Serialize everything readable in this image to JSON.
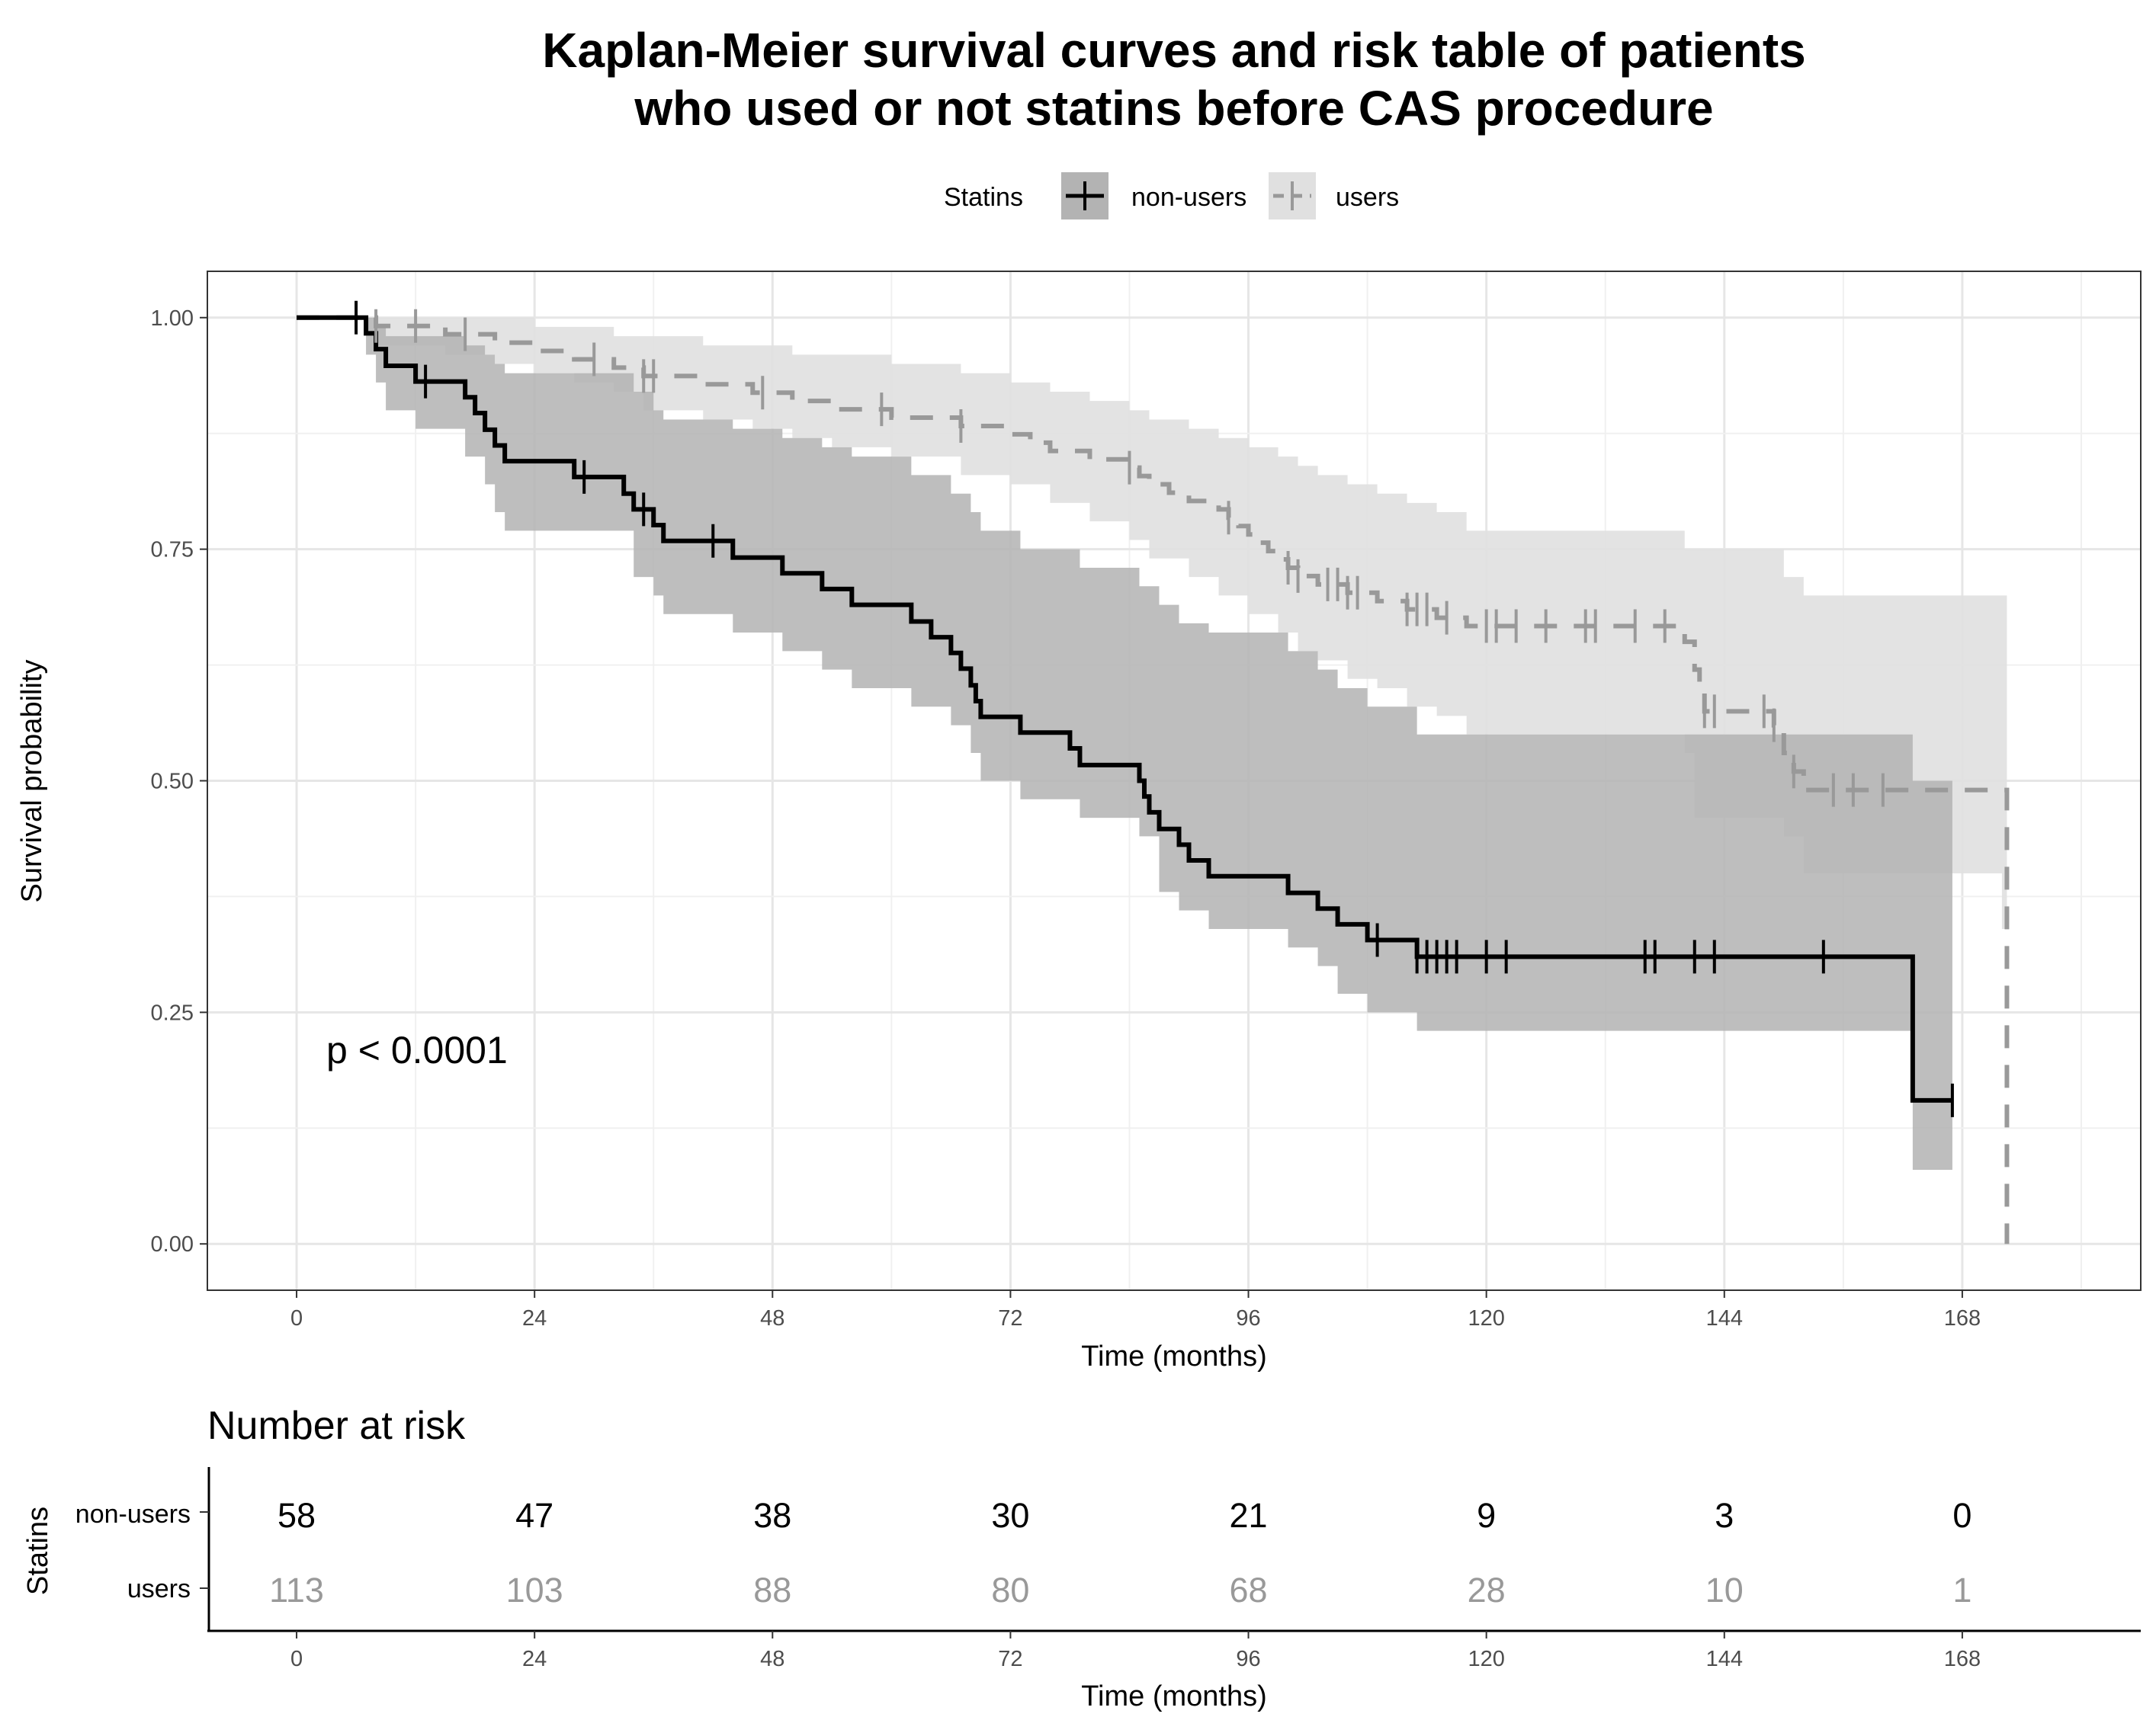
{
  "chart_data": {
    "type": "line",
    "subtype": "kaplan-meier",
    "title_lines": [
      "Kaplan-Meier survival curves and risk table of patients",
      "who used or not statins before CAS procedure"
    ],
    "legend": {
      "title": "Statins",
      "position": "top",
      "entries": [
        "non-users",
        "users"
      ]
    },
    "xlabel": "Time (months)",
    "ylabel": "Survival probability",
    "xlim": [
      -9,
      186
    ],
    "ylim": [
      -0.05,
      1.05
    ],
    "x_ticks": [
      0,
      24,
      48,
      72,
      96,
      120,
      144,
      168
    ],
    "x_tick_labels": [
      "0",
      "24",
      "48",
      "72",
      "96",
      "120",
      "144",
      "168"
    ],
    "y_ticks": [
      0,
      0.25,
      0.5,
      0.75,
      1
    ],
    "y_tick_labels": [
      "0.00",
      "0.25",
      "0.50",
      "0.75",
      "1.00"
    ],
    "grid": true,
    "annotation": "p < 0.0001",
    "annotation_at": [
      3,
      0.195
    ],
    "series": [
      {
        "name": "non-users",
        "color": "#000000",
        "band_color": "#b3b3b3",
        "dash": false,
        "steps": [
          [
            0,
            1.0
          ],
          [
            7,
            0.983
          ],
          [
            8,
            0.966
          ],
          [
            9,
            0.948
          ],
          [
            12,
            0.931
          ],
          [
            15,
            0.931
          ],
          [
            17,
            0.914
          ],
          [
            18,
            0.897
          ],
          [
            19,
            0.879
          ],
          [
            20,
            0.862
          ],
          [
            21,
            0.845
          ],
          [
            24,
            0.845
          ],
          [
            28,
            0.828
          ],
          [
            33,
            0.81
          ],
          [
            34,
            0.793
          ],
          [
            36,
            0.776
          ],
          [
            37,
            0.759
          ],
          [
            40,
            0.759
          ],
          [
            44,
            0.741
          ],
          [
            49,
            0.724
          ],
          [
            53,
            0.707
          ],
          [
            56,
            0.69
          ],
          [
            62,
            0.672
          ],
          [
            64,
            0.655
          ],
          [
            66,
            0.638
          ],
          [
            67,
            0.621
          ],
          [
            68,
            0.603
          ],
          [
            68.5,
            0.586
          ],
          [
            69,
            0.569
          ],
          [
            73,
            0.552
          ],
          [
            78,
            0.535
          ],
          [
            79,
            0.517
          ],
          [
            85,
            0.5
          ],
          [
            85.5,
            0.483
          ],
          [
            86,
            0.466
          ],
          [
            87,
            0.448
          ],
          [
            89,
            0.431
          ],
          [
            90,
            0.414
          ],
          [
            92,
            0.397
          ],
          [
            100,
            0.379
          ],
          [
            103,
            0.362
          ],
          [
            105,
            0.345
          ],
          [
            108,
            0.328
          ],
          [
            113,
            0.31
          ],
          [
            163,
            0.155
          ],
          [
            167,
            0.155
          ]
        ],
        "ci_steps": [
          [
            0,
            1.0,
            1.0
          ],
          [
            7,
            1.0,
            0.96
          ],
          [
            8,
            0.99,
            0.93
          ],
          [
            9,
            0.98,
            0.9
          ],
          [
            12,
            0.98,
            0.88
          ],
          [
            17,
            0.97,
            0.85
          ],
          [
            19,
            0.96,
            0.82
          ],
          [
            20,
            0.95,
            0.79
          ],
          [
            21,
            0.94,
            0.77
          ],
          [
            24,
            0.94,
            0.77
          ],
          [
            34,
            0.92,
            0.72
          ],
          [
            36,
            0.9,
            0.7
          ],
          [
            37,
            0.89,
            0.68
          ],
          [
            44,
            0.88,
            0.66
          ],
          [
            49,
            0.87,
            0.64
          ],
          [
            53,
            0.86,
            0.62
          ],
          [
            56,
            0.85,
            0.6
          ],
          [
            62,
            0.83,
            0.58
          ],
          [
            66,
            0.81,
            0.56
          ],
          [
            68,
            0.79,
            0.53
          ],
          [
            69,
            0.77,
            0.5
          ],
          [
            73,
            0.75,
            0.48
          ],
          [
            79,
            0.73,
            0.46
          ],
          [
            85,
            0.71,
            0.44
          ],
          [
            87,
            0.69,
            0.38
          ],
          [
            89,
            0.67,
            0.36
          ],
          [
            92,
            0.66,
            0.34
          ],
          [
            100,
            0.64,
            0.32
          ],
          [
            103,
            0.62,
            0.3
          ],
          [
            105,
            0.6,
            0.27
          ],
          [
            108,
            0.58,
            0.25
          ],
          [
            113,
            0.55,
            0.23
          ],
          [
            163,
            0.5,
            0.08
          ],
          [
            167,
            0.5,
            0.08
          ]
        ],
        "censor_times": [
          6,
          13,
          29,
          35,
          42,
          109,
          113,
          114,
          115,
          116,
          117,
          120,
          122,
          136,
          137,
          141,
          143,
          154,
          167
        ]
      },
      {
        "name": "users",
        "color": "#999999",
        "band_color": "#e0e0e0",
        "dash": true,
        "steps": [
          [
            0,
            1.0
          ],
          [
            8,
            0.991
          ],
          [
            15,
            0.982
          ],
          [
            20,
            0.973
          ],
          [
            24,
            0.964
          ],
          [
            28,
            0.955
          ],
          [
            32,
            0.946
          ],
          [
            35,
            0.937
          ],
          [
            41,
            0.928
          ],
          [
            46,
            0.919
          ],
          [
            50,
            0.91
          ],
          [
            54,
            0.901
          ],
          [
            60,
            0.892
          ],
          [
            67,
            0.883
          ],
          [
            72,
            0.874
          ],
          [
            74,
            0.865
          ],
          [
            76,
            0.856
          ],
          [
            80,
            0.847
          ],
          [
            84,
            0.838
          ],
          [
            85,
            0.829
          ],
          [
            86,
            0.82
          ],
          [
            88,
            0.811
          ],
          [
            90,
            0.802
          ],
          [
            93,
            0.793
          ],
          [
            94,
            0.784
          ],
          [
            95,
            0.775
          ],
          [
            96,
            0.766
          ],
          [
            97,
            0.757
          ],
          [
            98,
            0.748
          ],
          [
            99,
            0.739
          ],
          [
            100,
            0.73
          ],
          [
            101,
            0.721
          ],
          [
            103,
            0.712
          ],
          [
            106,
            0.703
          ],
          [
            109,
            0.694
          ],
          [
            112,
            0.685
          ],
          [
            115,
            0.676
          ],
          [
            118,
            0.667
          ],
          [
            140,
            0.65
          ],
          [
            141,
            0.62
          ],
          [
            141.5,
            0.6
          ],
          [
            142,
            0.575
          ],
          [
            149,
            0.56
          ],
          [
            150,
            0.53
          ],
          [
            151,
            0.51
          ],
          [
            152,
            0.49
          ],
          [
            172,
            0.49
          ],
          [
            172.5,
            0.0
          ]
        ],
        "ci_steps": [
          [
            0,
            1.0,
            1.0
          ],
          [
            8,
            1.0,
            0.97
          ],
          [
            15,
            1.0,
            0.96
          ],
          [
            20,
            1.0,
            0.95
          ],
          [
            24,
            0.99,
            0.94
          ],
          [
            28,
            0.99,
            0.93
          ],
          [
            32,
            0.98,
            0.92
          ],
          [
            35,
            0.98,
            0.9
          ],
          [
            41,
            0.97,
            0.89
          ],
          [
            46,
            0.97,
            0.88
          ],
          [
            50,
            0.96,
            0.87
          ],
          [
            54,
            0.96,
            0.86
          ],
          [
            60,
            0.95,
            0.85
          ],
          [
            67,
            0.94,
            0.83
          ],
          [
            72,
            0.93,
            0.82
          ],
          [
            76,
            0.92,
            0.8
          ],
          [
            80,
            0.91,
            0.78
          ],
          [
            84,
            0.9,
            0.76
          ],
          [
            86,
            0.89,
            0.74
          ],
          [
            90,
            0.88,
            0.72
          ],
          [
            93,
            0.87,
            0.7
          ],
          [
            96,
            0.86,
            0.68
          ],
          [
            99,
            0.85,
            0.66
          ],
          [
            101,
            0.84,
            0.64
          ],
          [
            103,
            0.83,
            0.63
          ],
          [
            106,
            0.82,
            0.61
          ],
          [
            109,
            0.81,
            0.6
          ],
          [
            112,
            0.8,
            0.58
          ],
          [
            115,
            0.79,
            0.57
          ],
          [
            118,
            0.77,
            0.55
          ],
          [
            140,
            0.75,
            0.53
          ],
          [
            141,
            0.75,
            0.46
          ],
          [
            150,
            0.72,
            0.44
          ],
          [
            152,
            0.7,
            0.4
          ],
          [
            172,
            0.7,
            0.34
          ],
          [
            172.5,
            0.7,
            0.34
          ]
        ],
        "censor_times": [
          8,
          12,
          17,
          30,
          35,
          36,
          47,
          59,
          67,
          84,
          94,
          100,
          101,
          104,
          105,
          106,
          107,
          112,
          113,
          114,
          116,
          120,
          121,
          123,
          126,
          130,
          131,
          135,
          138,
          142,
          143,
          148,
          149,
          151,
          155,
          157,
          160
        ]
      }
    ],
    "risk_table": {
      "title": "Number at risk",
      "strata_title": "Statins",
      "times": [
        0,
        24,
        48,
        72,
        96,
        120,
        144,
        168
      ],
      "rows": [
        {
          "name": "non-users",
          "color": "#000000",
          "values": [
            "58",
            "47",
            "38",
            "30",
            "21",
            "9",
            "3",
            "0"
          ]
        },
        {
          "name": "users",
          "color": "#999999",
          "values": [
            "113",
            "103",
            "88",
            "80",
            "68",
            "28",
            "10",
            "1"
          ]
        }
      ],
      "xlabel": "Time (months)",
      "x_tick_labels": [
        "0",
        "24",
        "48",
        "72",
        "96",
        "120",
        "144",
        "168"
      ]
    }
  }
}
